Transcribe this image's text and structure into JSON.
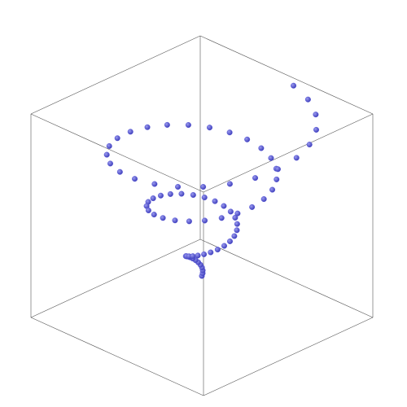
{
  "chart_data": {
    "type": "scatter3d",
    "color": "#5656d8",
    "box": true,
    "xlim": [
      -19,
      19
    ],
    "ylim": [
      -19,
      19
    ],
    "zlim": [
      -5,
      19.5
    ],
    "x": [
      0,
      0.24,
      0.44,
      0.55,
      0.54,
      0.39,
      0.11,
      -0.31,
      -0.83,
      -1.41,
      -2.0,
      -2.54,
      -2.97,
      -3.23,
      -3.28,
      -3.08,
      -2.61,
      -1.9,
      -0.95,
      0.18,
      1.42,
      2.69,
      3.9,
      4.95,
      5.76,
      6.25,
      6.35,
      6.03,
      5.28,
      4.13,
      2.6,
      0.8,
      -1.16,
      -3.18,
      -5.12,
      -6.83,
      -8.2,
      -9.11,
      -9.47,
      -9.23,
      -8.39,
      -6.99,
      -4.99,
      -2.61,
      0.05,
      2.82,
      5.54,
      8.04,
      10.13,
      11.64,
      12.47,
      12.54,
      11.8,
      10.27,
      8.03,
      5.19,
      1.91,
      -1.6,
      -5.14,
      -8.49,
      -11.4,
      -13.68,
      -15.18,
      -15.74,
      -15.32,
      -13.92,
      -11.63,
      -8.45,
      -4.68,
      -0.5,
      3.83,
      8.02,
      11.89,
      15.07,
      17.39,
      18.66
    ],
    "y": [
      0,
      0.06,
      0.24,
      0.51,
      0.84,
      1.19,
      1.5,
      1.72,
      1.82,
      1.75,
      1.5,
      1.05,
      0.42,
      -0.35,
      -1.23,
      -2.14,
      -3.03,
      -3.8,
      -4.4,
      -4.75,
      -4.79,
      -4.51,
      -3.88,
      -2.92,
      -1.68,
      -0.21,
      1.4,
      3.04,
      4.6,
      5.96,
      7.04,
      7.71,
      7.92,
      7.61,
      6.79,
      5.47,
      3.71,
      1.59,
      -0.71,
      -3.14,
      -5.44,
      -7.49,
      -9.24,
      -10.43,
      -11.0,
      -10.89,
      -10.08,
      -8.56,
      -6.44,
      -3.81,
      -0.83,
      2.33,
      5.46,
      8.37,
      10.85,
      12.73,
      13.87,
      14.16,
      13.56,
      12.06,
      9.75,
      6.74,
      3.15,
      -0.66,
      -4.61,
      -8.38,
      -11.7,
      -14.46,
      -16.34,
      -17.24,
      -17.08,
      -15.83,
      -13.52,
      -10.29,
      -6.31,
      -1.87
    ],
    "z": [
      0,
      0.25,
      0.5,
      0.75,
      1.0,
      1.25,
      1.5,
      1.75,
      2.0,
      2.25,
      2.5,
      2.75,
      3.0,
      3.25,
      3.5,
      3.75,
      4.0,
      4.25,
      4.5,
      4.75,
      5.0,
      5.25,
      5.5,
      5.75,
      6.0,
      6.25,
      6.5,
      6.75,
      7.0,
      7.25,
      7.5,
      7.75,
      8.0,
      8.25,
      8.5,
      8.75,
      9.0,
      9.25,
      9.5,
      9.75,
      10.0,
      10.25,
      10.5,
      10.75,
      11.0,
      11.25,
      11.5,
      11.75,
      12.0,
      12.25,
      12.5,
      12.75,
      13.0,
      13.25,
      13.5,
      13.75,
      14.0,
      14.25,
      14.5,
      14.75,
      15.0,
      15.25,
      15.5,
      15.75,
      16.0,
      16.25,
      16.5,
      16.75,
      17.0,
      17.25,
      17.5,
      17.75,
      18.0,
      18.25,
      18.5,
      18.75
    ]
  }
}
